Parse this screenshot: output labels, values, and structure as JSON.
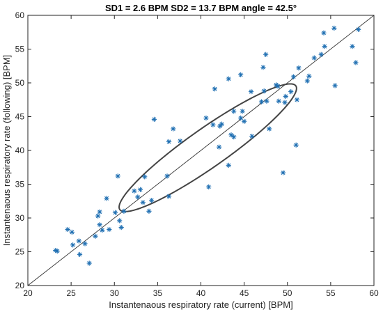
{
  "chart_data": {
    "type": "scatter",
    "title": "SD1 = 2.6 BPM    SD2 = 13.7 BPM    angle = 42.5°",
    "xlabel": "Instantenaous respiratory rate (current) [BPM]",
    "ylabel": "Instantenaous respiratory rate (following) [BPM]",
    "xlim": [
      20,
      60
    ],
    "ylim": [
      20,
      60
    ],
    "xticks": [
      20,
      25,
      30,
      35,
      40,
      45,
      50,
      55,
      60
    ],
    "yticks": [
      20,
      25,
      30,
      35,
      40,
      45,
      50,
      55,
      60
    ],
    "grid": false,
    "marker": "asterisk",
    "marker_color": "#1f6fb2",
    "identity_line": true,
    "ellipse": {
      "center": [
        40.8,
        40.4
      ],
      "sd1": 2.6,
      "sd2": 13.7,
      "angle_deg": 42.5,
      "color": "#444444"
    },
    "points": [
      [
        23.2,
        25.2
      ],
      [
        23.4,
        25.1
      ],
      [
        24.6,
        28.3
      ],
      [
        25.1,
        27.9
      ],
      [
        25.2,
        26.0
      ],
      [
        25.9,
        26.6
      ],
      [
        26.0,
        24.6
      ],
      [
        26.6,
        26.2
      ],
      [
        27.1,
        23.3
      ],
      [
        27.8,
        27.3
      ],
      [
        28.1,
        30.3
      ],
      [
        28.3,
        30.9
      ],
      [
        28.3,
        29.0
      ],
      [
        28.6,
        28.2
      ],
      [
        29.1,
        32.9
      ],
      [
        29.4,
        28.3
      ],
      [
        30.1,
        30.8
      ],
      [
        30.4,
        36.2
      ],
      [
        30.6,
        29.6
      ],
      [
        30.8,
        28.6
      ],
      [
        31.1,
        31.0
      ],
      [
        32.3,
        34.0
      ],
      [
        32.7,
        33.1
      ],
      [
        33.0,
        34.2
      ],
      [
        33.3,
        32.3
      ],
      [
        33.5,
        36.1
      ],
      [
        34.0,
        31.0
      ],
      [
        34.3,
        32.6
      ],
      [
        34.6,
        44.6
      ],
      [
        36.1,
        36.2
      ],
      [
        36.3,
        41.3
      ],
      [
        36.3,
        33.2
      ],
      [
        36.8,
        43.2
      ],
      [
        37.6,
        41.4
      ],
      [
        40.6,
        44.8
      ],
      [
        40.9,
        34.6
      ],
      [
        41.4,
        43.8
      ],
      [
        41.6,
        49.1
      ],
      [
        42.1,
        40.5
      ],
      [
        42.2,
        43.6
      ],
      [
        42.4,
        43.9
      ],
      [
        43.2,
        50.6
      ],
      [
        43.2,
        37.8
      ],
      [
        43.5,
        42.3
      ],
      [
        43.8,
        45.8
      ],
      [
        43.8,
        42.0
      ],
      [
        44.6,
        51.2
      ],
      [
        44.6,
        44.8
      ],
      [
        44.8,
        45.8
      ],
      [
        45.0,
        44.3
      ],
      [
        45.8,
        48.7
      ],
      [
        45.9,
        42.1
      ],
      [
        47.0,
        47.2
      ],
      [
        47.2,
        52.3
      ],
      [
        47.3,
        48.8
      ],
      [
        47.5,
        54.2
      ],
      [
        47.6,
        47.3
      ],
      [
        47.9,
        43.2
      ],
      [
        48.7,
        49.7
      ],
      [
        48.9,
        49.5
      ],
      [
        49.0,
        47.3
      ],
      [
        49.5,
        36.7
      ],
      [
        49.7,
        47.1
      ],
      [
        49.8,
        48.0
      ],
      [
        50.4,
        48.7
      ],
      [
        50.7,
        50.9
      ],
      [
        51.0,
        40.8
      ],
      [
        51.1,
        47.5
      ],
      [
        51.3,
        52.2
      ],
      [
        52.3,
        50.3
      ],
      [
        52.5,
        51.0
      ],
      [
        53.1,
        53.7
      ],
      [
        53.9,
        54.2
      ],
      [
        54.2,
        57.4
      ],
      [
        54.3,
        55.4
      ],
      [
        55.4,
        58.1
      ],
      [
        55.5,
        49.6
      ],
      [
        57.5,
        55.4
      ],
      [
        57.9,
        53.0
      ],
      [
        58.2,
        57.9
      ]
    ]
  }
}
